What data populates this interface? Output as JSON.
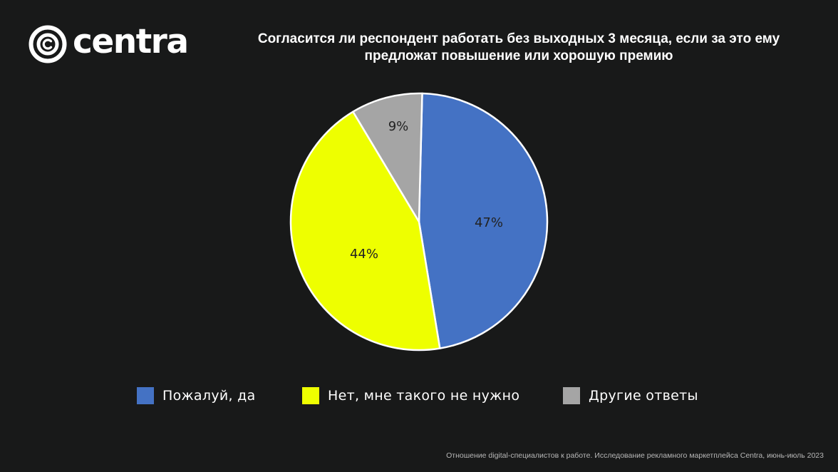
{
  "brand": {
    "name": "centra",
    "logo_icon": "copyright-circle-icon"
  },
  "title": "Согласится ли респондент работать без выходных 3 месяца, если за это ему предложат повышение или хорошую премию",
  "footer": "Отношение digital-специалистов к работе. Исследование рекламного маркетплейса Centra, июнь-июль 2023",
  "chart_data": {
    "type": "pie",
    "title": "Согласится ли респондент работать без выходных 3 месяца, если за это ему предложат повышение или хорошую премию",
    "categories": [
      "Пожалуй, да",
      "Нет, мне такого не нужно",
      "Другие ответы"
    ],
    "values": [
      47,
      44,
      9
    ],
    "labels": [
      "47%",
      "44%",
      "9%"
    ],
    "colors": [
      "#4472c4",
      "#eeff00",
      "#a5a5a5"
    ],
    "start_angle_deg": 0,
    "direction": "clockwise",
    "slice_border": "#ffffff",
    "label_color": "#222222",
    "legend_position": "bottom"
  }
}
